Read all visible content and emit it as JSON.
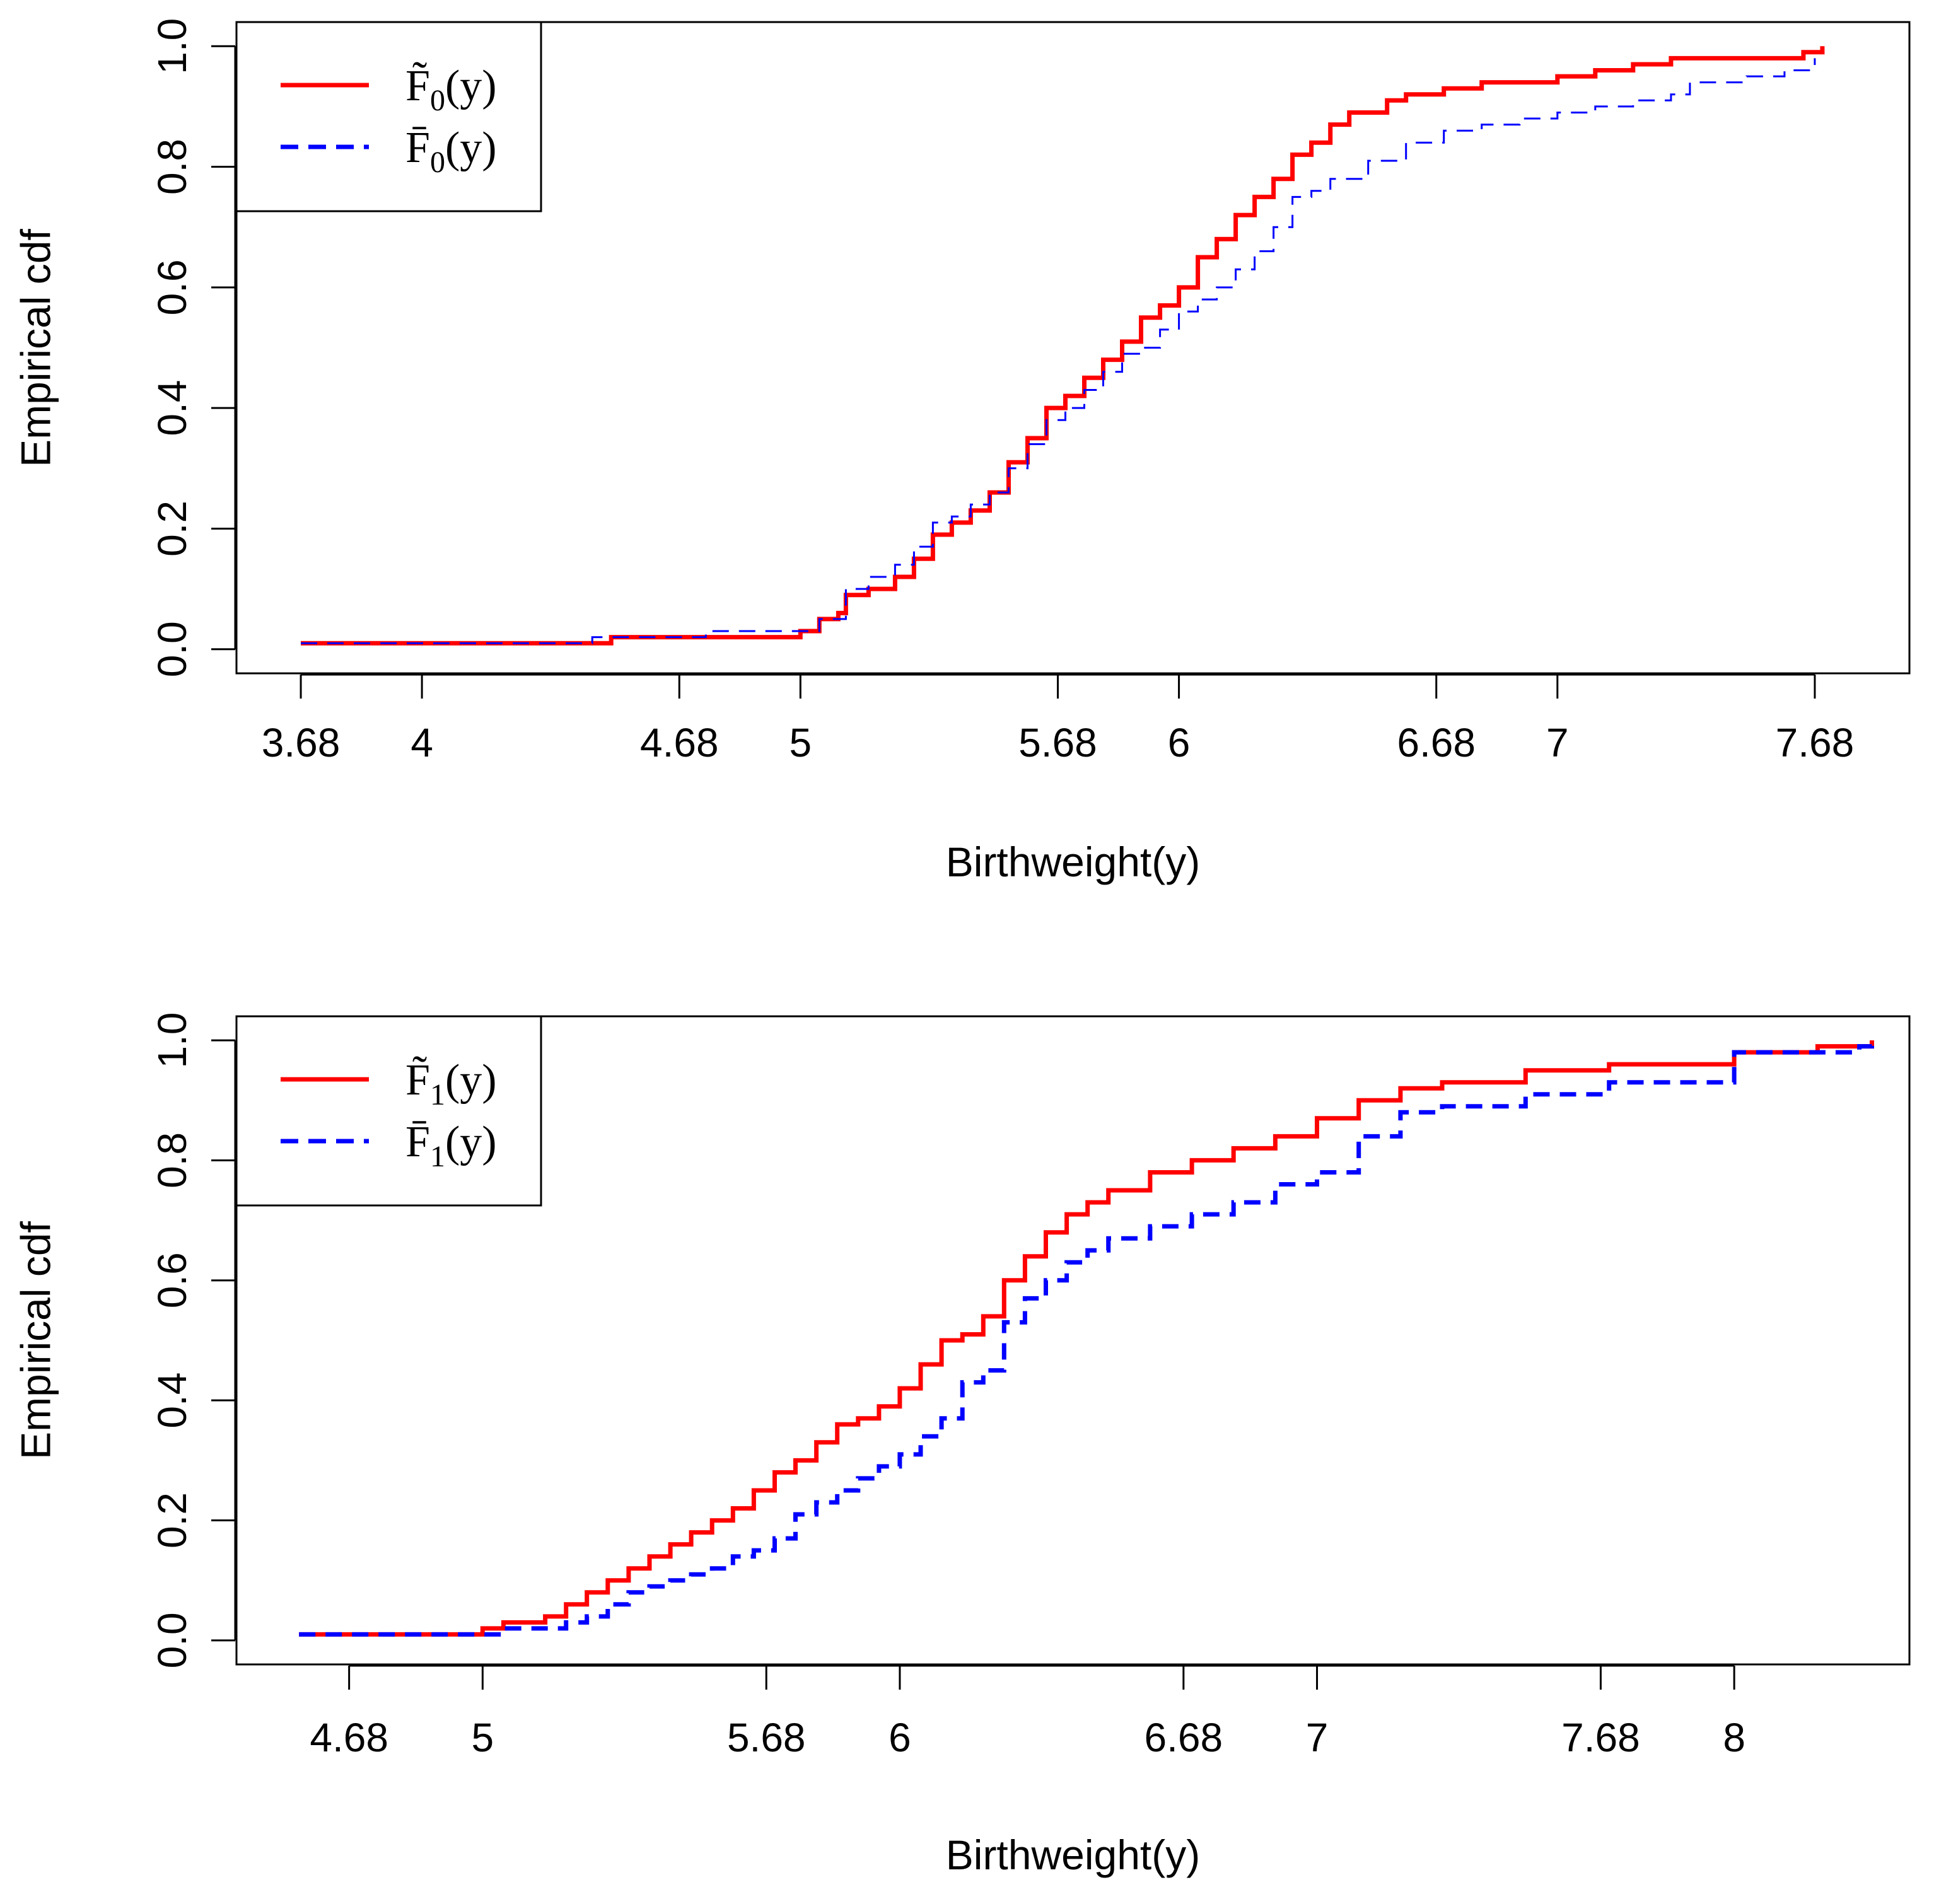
{
  "chart_data": [
    {
      "type": "line",
      "panel": "top",
      "xlabel": "Birthweight(y)",
      "ylabel": "Empirical cdf",
      "xlim": [
        3.51,
        7.93
      ],
      "ylim": [
        -0.04,
        1.04
      ],
      "x_ticks": [
        3.68,
        4,
        4.68,
        5,
        5.68,
        6,
        6.68,
        7,
        7.68
      ],
      "x_tick_labels": [
        "3.68",
        "4",
        "4.68",
        "5",
        "5.68",
        "6",
        "6.68",
        "7",
        "7.68"
      ],
      "y_ticks": [
        0,
        0.2,
        0.4,
        0.6,
        0.8,
        1
      ],
      "y_tick_labels": [
        "0.0",
        "0.2",
        "0.4",
        "0.6",
        "0.8",
        "1.0"
      ],
      "legend": {
        "position": "top-left"
      },
      "series": [
        {
          "name": "F̃₀(y)",
          "legend_main": "F̃",
          "legend_sub": "0",
          "legend_tail": "(y)",
          "color": "#ff0000",
          "style": "solid",
          "x": [
            3.68,
            4.5,
            4.75,
            5.0,
            5.05,
            5.1,
            5.12,
            5.18,
            5.25,
            5.3,
            5.35,
            5.4,
            5.45,
            5.5,
            5.55,
            5.6,
            5.65,
            5.7,
            5.75,
            5.8,
            5.85,
            5.9,
            5.95,
            6.0,
            6.05,
            6.1,
            6.15,
            6.2,
            6.25,
            6.3,
            6.35,
            6.4,
            6.45,
            6.55,
            6.6,
            6.7,
            6.8,
            7.0,
            7.1,
            7.2,
            7.3,
            7.5,
            7.65,
            7.7
          ],
          "y": [
            0.01,
            0.02,
            0.02,
            0.03,
            0.05,
            0.06,
            0.09,
            0.1,
            0.12,
            0.15,
            0.19,
            0.21,
            0.23,
            0.26,
            0.31,
            0.35,
            0.4,
            0.42,
            0.45,
            0.48,
            0.51,
            0.55,
            0.57,
            0.6,
            0.65,
            0.68,
            0.72,
            0.75,
            0.78,
            0.82,
            0.84,
            0.87,
            0.89,
            0.91,
            0.92,
            0.93,
            0.94,
            0.95,
            0.96,
            0.97,
            0.98,
            0.98,
            0.99,
            1.0
          ]
        },
        {
          "name": "F̄₀(y)",
          "legend_main": "F̄",
          "legend_sub": "0",
          "legend_tail": "(y)",
          "color": "#0000ff",
          "style": "dashed",
          "x": [
            3.68,
            4.45,
            4.75,
            5.0,
            5.05,
            5.12,
            5.18,
            5.25,
            5.3,
            5.35,
            5.4,
            5.45,
            5.5,
            5.55,
            5.6,
            5.65,
            5.7,
            5.75,
            5.8,
            5.85,
            5.9,
            5.95,
            6.0,
            6.05,
            6.1,
            6.15,
            6.2,
            6.25,
            6.3,
            6.35,
            6.4,
            6.5,
            6.6,
            6.7,
            6.8,
            6.9,
            7.0,
            7.1,
            7.2,
            7.3,
            7.35,
            7.5,
            7.6,
            7.68
          ],
          "y": [
            0.01,
            0.02,
            0.03,
            0.03,
            0.05,
            0.1,
            0.12,
            0.14,
            0.17,
            0.21,
            0.22,
            0.24,
            0.26,
            0.3,
            0.34,
            0.38,
            0.4,
            0.43,
            0.46,
            0.49,
            0.5,
            0.53,
            0.56,
            0.58,
            0.6,
            0.63,
            0.66,
            0.7,
            0.75,
            0.76,
            0.78,
            0.81,
            0.84,
            0.86,
            0.87,
            0.88,
            0.89,
            0.9,
            0.91,
            0.92,
            0.94,
            0.95,
            0.96,
            0.98
          ]
        }
      ]
    },
    {
      "type": "line",
      "panel": "bottom",
      "xlabel": "Birthweight(y)",
      "ylabel": "Empirical cdf",
      "xlim": [
        4.41,
        8.42
      ],
      "ylim": [
        -0.04,
        1.04
      ],
      "x_ticks": [
        4.68,
        5,
        5.68,
        6,
        6.68,
        7,
        7.68,
        8
      ],
      "x_tick_labels": [
        "4.68",
        "5",
        "5.68",
        "6",
        "6.68",
        "7",
        "7.68",
        "8"
      ],
      "y_ticks": [
        0,
        0.2,
        0.4,
        0.6,
        0.8,
        1
      ],
      "y_tick_labels": [
        "0.0",
        "0.2",
        "0.4",
        "0.6",
        "0.8",
        "1.0"
      ],
      "legend": {
        "position": "top-left"
      },
      "series": [
        {
          "name": "F̃₁(y)",
          "legend_main": "F̃",
          "legend_sub": "1",
          "legend_tail": "(y)",
          "color": "#ff0000",
          "style": "solid",
          "x": [
            4.56,
            4.95,
            5.0,
            5.05,
            5.1,
            5.15,
            5.2,
            5.25,
            5.3,
            5.35,
            5.4,
            5.45,
            5.5,
            5.55,
            5.6,
            5.65,
            5.7,
            5.75,
            5.8,
            5.85,
            5.9,
            5.95,
            6.0,
            6.05,
            6.1,
            6.15,
            6.2,
            6.25,
            6.3,
            6.35,
            6.4,
            6.45,
            6.5,
            6.6,
            6.7,
            6.8,
            6.9,
            7.0,
            7.1,
            7.2,
            7.3,
            7.5,
            7.7,
            8.0,
            8.2,
            8.33
          ],
          "y": [
            0.01,
            0.01,
            0.02,
            0.03,
            0.03,
            0.04,
            0.06,
            0.08,
            0.1,
            0.12,
            0.14,
            0.16,
            0.18,
            0.2,
            0.22,
            0.25,
            0.28,
            0.3,
            0.33,
            0.36,
            0.37,
            0.39,
            0.42,
            0.46,
            0.5,
            0.51,
            0.54,
            0.6,
            0.64,
            0.68,
            0.71,
            0.73,
            0.75,
            0.78,
            0.8,
            0.82,
            0.84,
            0.87,
            0.9,
            0.92,
            0.93,
            0.95,
            0.96,
            0.98,
            0.99,
            1.0
          ]
        },
        {
          "name": "F̄₁(y)",
          "legend_main": "F̄",
          "legend_sub": "1",
          "legend_tail": "(y)",
          "color": "#0000ff",
          "style": "dashed",
          "x": [
            4.56,
            5.0,
            5.05,
            5.15,
            5.2,
            5.25,
            5.3,
            5.35,
            5.4,
            5.45,
            5.5,
            5.55,
            5.6,
            5.65,
            5.7,
            5.75,
            5.8,
            5.85,
            5.9,
            5.95,
            6.0,
            6.05,
            6.1,
            6.15,
            6.2,
            6.25,
            6.3,
            6.35,
            6.4,
            6.45,
            6.5,
            6.6,
            6.7,
            6.8,
            6.9,
            7.0,
            7.1,
            7.2,
            7.3,
            7.5,
            7.7,
            8.0,
            8.3,
            8.33
          ],
          "y": [
            0.01,
            0.01,
            0.02,
            0.02,
            0.03,
            0.04,
            0.06,
            0.08,
            0.09,
            0.1,
            0.11,
            0.12,
            0.14,
            0.15,
            0.17,
            0.21,
            0.23,
            0.25,
            0.27,
            0.29,
            0.31,
            0.34,
            0.37,
            0.43,
            0.45,
            0.53,
            0.57,
            0.6,
            0.63,
            0.65,
            0.67,
            0.69,
            0.71,
            0.73,
            0.76,
            0.78,
            0.84,
            0.88,
            0.89,
            0.91,
            0.93,
            0.98,
            0.99,
            1.0
          ]
        }
      ]
    }
  ]
}
